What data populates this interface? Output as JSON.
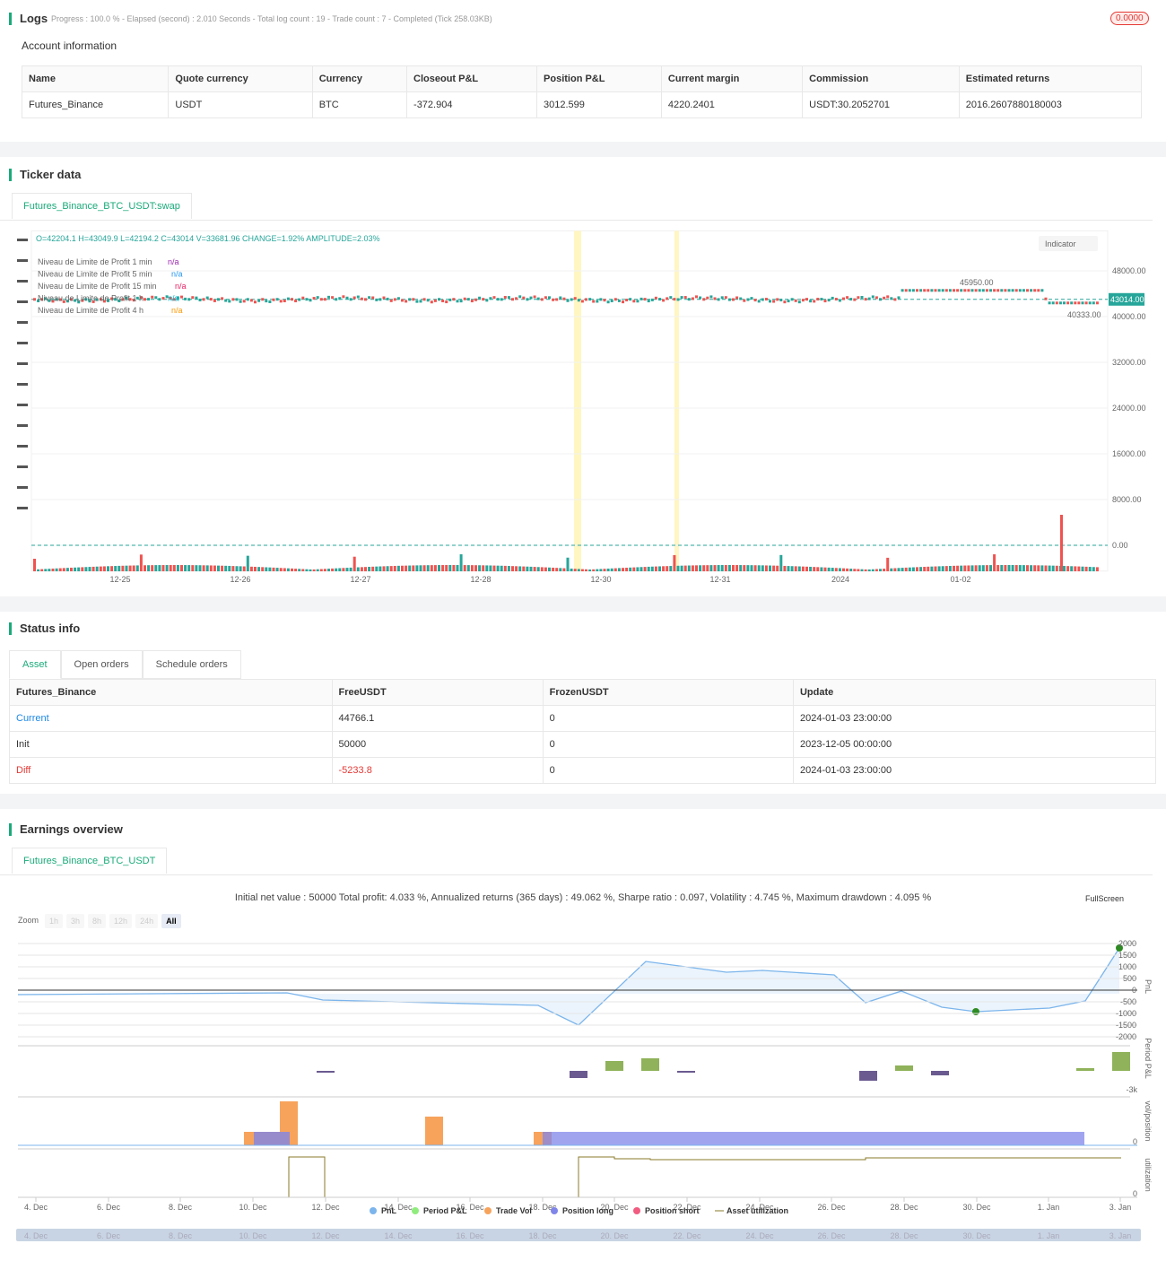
{
  "logs": {
    "title": "Logs",
    "progress": "Progress : 100.0 % - Elapsed (second) : 2.010 Seconds - Total log count : 19 - Trade count : 7 - Completed (Tick 258.03KB)",
    "badge": "0.0000",
    "account_title": "Account information",
    "table": {
      "headers": [
        "Name",
        "Quote currency",
        "Currency",
        "Closeout P&L",
        "Position P&L",
        "Current margin",
        "Commission",
        "Estimated returns"
      ],
      "rows": [
        [
          "Futures_Binance",
          "USDT",
          "BTC",
          "-372.904",
          "3012.599",
          "4220.2401",
          "USDT:30.2052701",
          "2016.2607880180003"
        ]
      ]
    }
  },
  "ticker": {
    "title": "Ticker data",
    "tab": "Futures_Binance_BTC_USDT:swap",
    "ohlc": "O=42204.1 H=43049.9 L=42194.2 C=43014 V=33681.96 CHANGE=1.92% AMPLITUDE=2.03%",
    "legend": [
      {
        "name": "Niveau de Limite de Profit 1 min",
        "value": "n/a",
        "color": "#9c27b0"
      },
      {
        "name": "Niveau de Limite de Profit 5 min",
        "value": "n/a",
        "color": "#2196f3"
      },
      {
        "name": "Niveau de Limite de Profit 15 min",
        "value": "n/a",
        "color": "#e91e63"
      },
      {
        "name": "Niveau de Limite de Profit 1 h",
        "value": "n/a",
        "color": "#00bcd4"
      },
      {
        "name": "Niveau de Limite de Profit 4 h",
        "value": "n/a",
        "color": "#ff9800"
      }
    ],
    "indicator": "Indicator",
    "ylim": [
      -4500,
      55000
    ],
    "yticks": [
      {
        "value": 48000,
        "label": "48000.00"
      },
      {
        "value": 40000,
        "label": "40000.00"
      },
      {
        "value": 32000,
        "label": "32000.00"
      },
      {
        "value": 24000,
        "label": "24000.00"
      },
      {
        "value": 16000,
        "label": "16000.00"
      },
      {
        "value": 8000,
        "label": "8000.00"
      },
      {
        "value": 0,
        "label": "0.00"
      }
    ],
    "last_price": {
      "value": 43014,
      "label": "43014.00"
    },
    "high": {
      "value": 45950,
      "label": "45950.00"
    },
    "low": {
      "value": 40333,
      "label": "40333.00"
    },
    "xlabels": [
      "12-25",
      "12-26",
      "12-27",
      "12-28",
      "12-30",
      "12-31",
      "2024",
      "01-02"
    ]
  },
  "status": {
    "title": "Status info",
    "tabs": [
      "Asset",
      "Open orders",
      "Schedule orders"
    ],
    "table": {
      "headers": [
        "Futures_Binance",
        "FreeUSDT",
        "FrozenUSDT",
        "Update"
      ],
      "rows": [
        [
          "Current",
          "44766.1",
          "0",
          "2024-01-03 23:00:00"
        ],
        [
          "Init",
          "50000",
          "0",
          "2023-12-05 00:00:00"
        ],
        [
          "Diff",
          "-5233.8",
          "0",
          "2024-01-03 23:00:00"
        ]
      ]
    }
  },
  "earnings": {
    "title": "Earnings overview",
    "tab": "Futures_Binance_BTC_USDT",
    "summary": "Initial net value : 50000 Total profit: 4.033 %, Annualized returns (365 days) : 49.062 %, Sharpe ratio : 0.097, Volatility : 4.745 %, Maximum drawdown : 4.095 %",
    "fullscreen": "FullScreen",
    "zoom_label": "Zoom",
    "zoom": [
      "1h",
      "3h",
      "8h",
      "12h",
      "24h",
      "All"
    ],
    "pnl_ylim": [
      -2000,
      2000
    ],
    "pnl_yticks": [
      2000,
      1500,
      1000,
      500,
      0,
      -500,
      -1000,
      -1500,
      -2000
    ],
    "axis_titles": [
      "PnL",
      "Period P&L",
      "vol/position",
      "utilization"
    ],
    "period_tick": "-3k",
    "vol_tick": "0",
    "util_tick": "0",
    "xlabels": [
      "4. Dec",
      "6. Dec",
      "8. Dec",
      "10. Dec",
      "12. Dec",
      "14. Dec",
      "16. Dec",
      "18. Dec",
      "20. Dec",
      "22. Dec",
      "24. Dec",
      "26. Dec",
      "28. Dec",
      "30. Dec",
      "1. Jan",
      "3. Jan"
    ],
    "legend": [
      {
        "name": "PnL",
        "color": "#7cb5ec"
      },
      {
        "name": "Period P&L",
        "color": "#90ed7d"
      },
      {
        "name": "Trade Vol",
        "color": "#f7a35c"
      },
      {
        "name": "Position long",
        "color": "#8085e9"
      },
      {
        "name": "Position short",
        "color": "#f15c80"
      },
      {
        "name": "Asset utilization",
        "color": "#8a7a2a"
      }
    ]
  }
}
